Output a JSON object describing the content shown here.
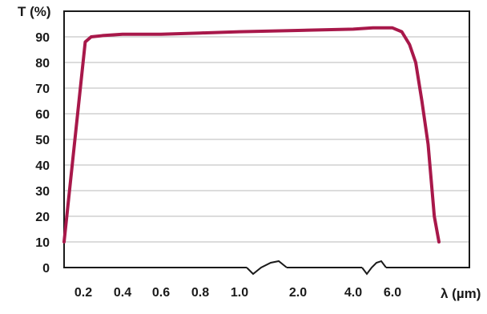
{
  "chart_data": {
    "type": "line",
    "ylabel": "T (%)",
    "xlabel": "λ (µm)",
    "ylim": [
      0,
      100
    ],
    "y_ticks": [
      "0",
      "10",
      "20",
      "30",
      "40",
      "50",
      "60",
      "70",
      "80",
      "90"
    ],
    "x_ticks": [
      "0.2",
      "0.4",
      "0.6",
      "0.8",
      "1.0",
      "2.0",
      "4.0",
      "6.0"
    ],
    "grid": true,
    "axis_breaks": [
      "between 1.0 and 2.0",
      "between 4.0 and 6.0"
    ],
    "series": [
      {
        "color": "#a8184a",
        "x": [
          0.12,
          0.21,
          0.24,
          0.3,
          0.4,
          0.6,
          0.8,
          1.0,
          2.0,
          4.0,
          5.0,
          6.0,
          6.6,
          7.1,
          7.5,
          7.9,
          8.3,
          8.7,
          9.0
        ],
        "y": [
          10,
          88,
          90,
          90.5,
          91,
          91,
          91.5,
          92,
          92.5,
          93,
          93.5,
          93.5,
          92,
          87,
          80,
          65,
          48,
          20,
          10
        ]
      }
    ]
  }
}
